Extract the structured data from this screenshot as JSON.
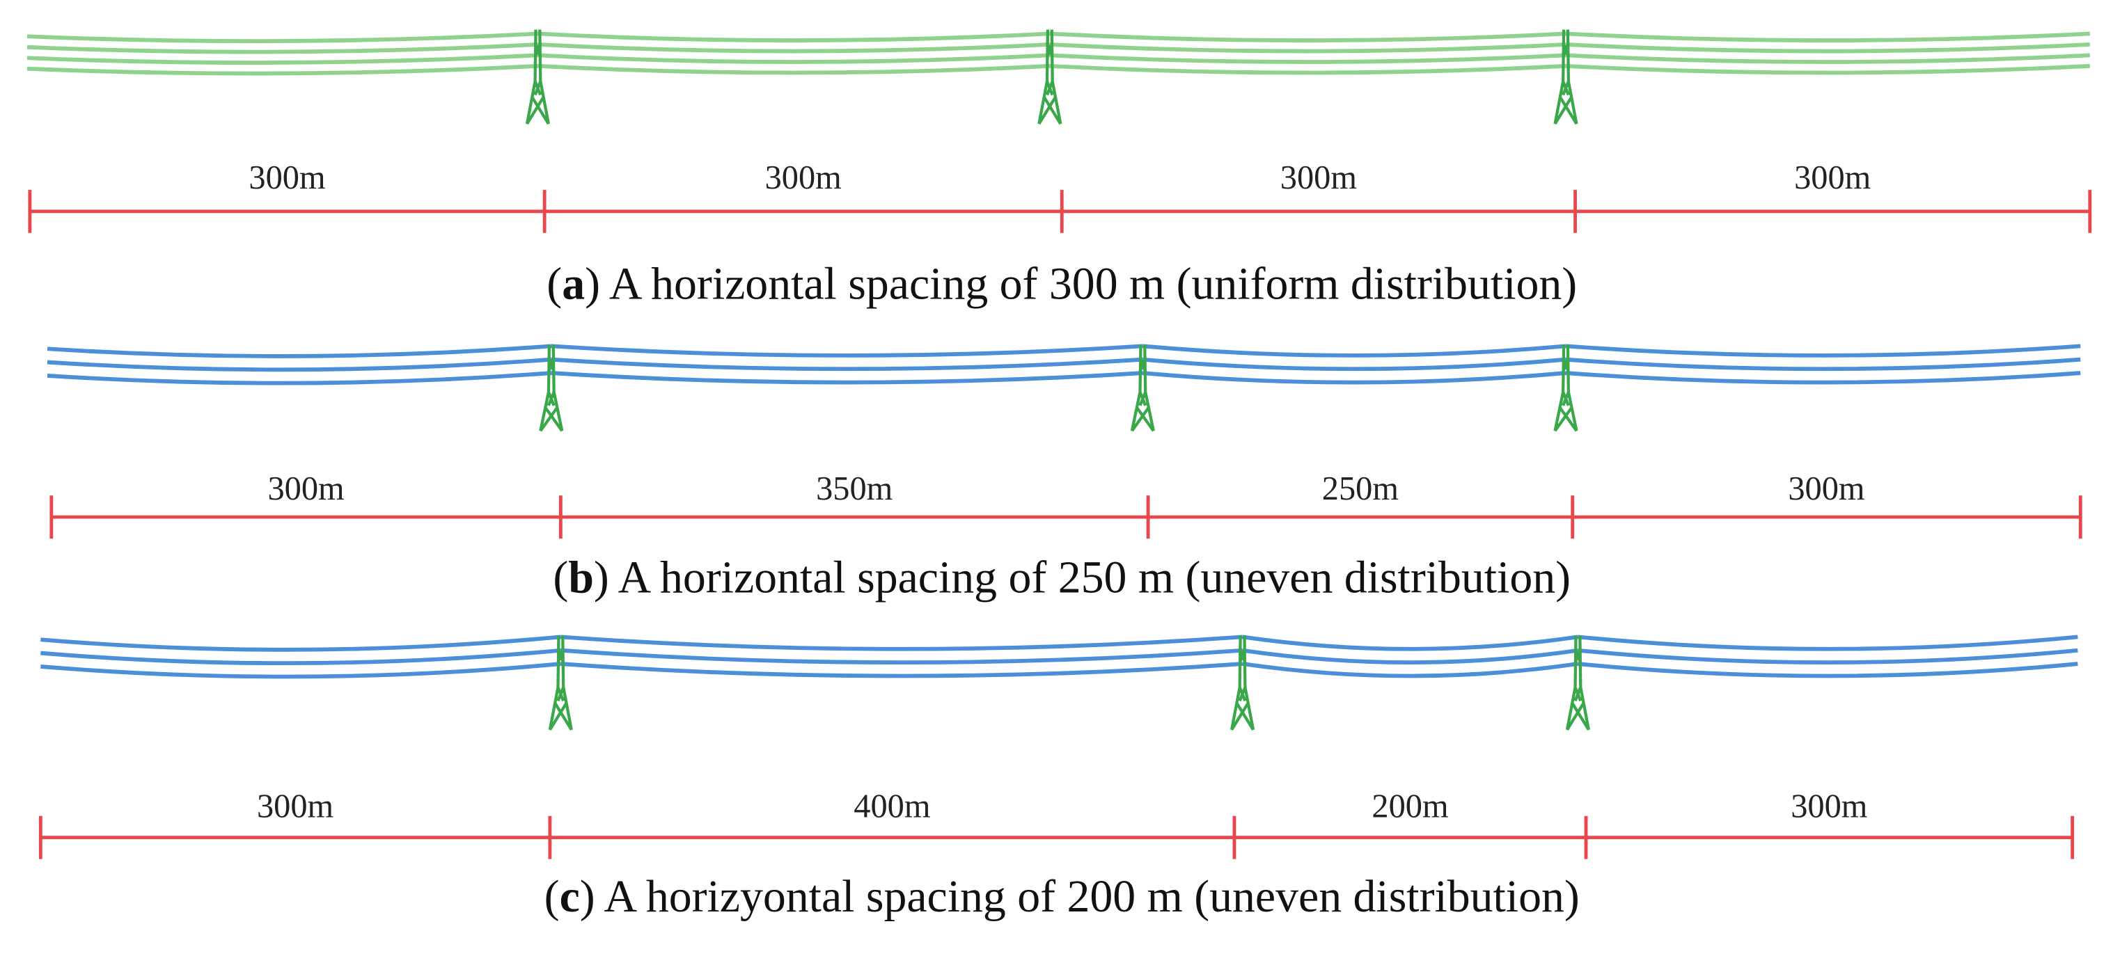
{
  "panels": [
    {
      "segments": [
        "300m",
        "300m",
        "300m",
        "300m"
      ],
      "caption": {
        "prefix": "(",
        "letter": "a",
        "text": ") A horizontal spacing of 300 m (uniform distribution)"
      }
    },
    {
      "segments": [
        "300m",
        "350m",
        "250m",
        "300m"
      ],
      "caption": {
        "prefix": "(",
        "letter": "b",
        "text": ") A horizontal spacing of 250 m (uneven distribution)"
      }
    },
    {
      "segments": [
        "300m",
        "400m",
        "200m",
        "300m"
      ],
      "caption": {
        "prefix": "(",
        "letter": "c",
        "text": ") A horizyontal spacing of 200 m (uneven distribution)"
      }
    }
  ]
}
